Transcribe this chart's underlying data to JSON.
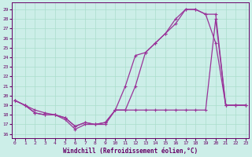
{
  "xlabel": "Windchill (Refroidissement éolien,°C)",
  "background_color": "#cceee8",
  "grid_color": "#aaddcc",
  "line_color": "#993399",
  "x_ticks": [
    0,
    1,
    2,
    3,
    4,
    5,
    6,
    7,
    8,
    9,
    10,
    11,
    12,
    13,
    14,
    15,
    16,
    17,
    18,
    19,
    20,
    21,
    22,
    23
  ],
  "y_ticks": [
    16,
    17,
    18,
    19,
    20,
    21,
    22,
    23,
    24,
    25,
    26,
    27,
    28,
    29
  ],
  "xlim": [
    -0.3,
    23.3
  ],
  "ylim": [
    15.6,
    29.7
  ],
  "series1_x": [
    0,
    1,
    2,
    3,
    4,
    5,
    6,
    7,
    8,
    9,
    10,
    11,
    12,
    13,
    14,
    15,
    16,
    17,
    18,
    19,
    20,
    21,
    22,
    23
  ],
  "series1_y": [
    19.5,
    19.0,
    18.5,
    18.2,
    18.0,
    17.5,
    16.5,
    17.0,
    17.0,
    17.0,
    18.5,
    21.0,
    24.2,
    24.5,
    25.5,
    26.5,
    28.0,
    29.0,
    29.0,
    28.5,
    25.5,
    19.0,
    19.0,
    19.0
  ],
  "series2_x": [
    0,
    1,
    2,
    3,
    4,
    5,
    6,
    7,
    8,
    9,
    10,
    11,
    12,
    13,
    14,
    15,
    16,
    17,
    18,
    19,
    20,
    21,
    22,
    23
  ],
  "series2_y": [
    19.5,
    19.0,
    18.2,
    18.0,
    18.0,
    17.7,
    16.8,
    17.2,
    17.0,
    17.2,
    18.5,
    18.5,
    18.5,
    18.5,
    18.5,
    18.5,
    18.5,
    18.5,
    18.5,
    18.5,
    28.0,
    19.0,
    19.0,
    19.0
  ],
  "series3_x": [
    0,
    1,
    2,
    3,
    4,
    5,
    6,
    7,
    8,
    9,
    10,
    11,
    12,
    13,
    14,
    15,
    16,
    17,
    18,
    19,
    20,
    21,
    22,
    23
  ],
  "series3_y": [
    19.5,
    19.0,
    18.2,
    18.0,
    18.0,
    17.7,
    16.8,
    17.2,
    17.0,
    17.2,
    18.5,
    18.5,
    21.0,
    24.5,
    25.5,
    26.5,
    27.5,
    29.0,
    29.0,
    28.5,
    28.5,
    19.0,
    19.0,
    19.0
  ]
}
